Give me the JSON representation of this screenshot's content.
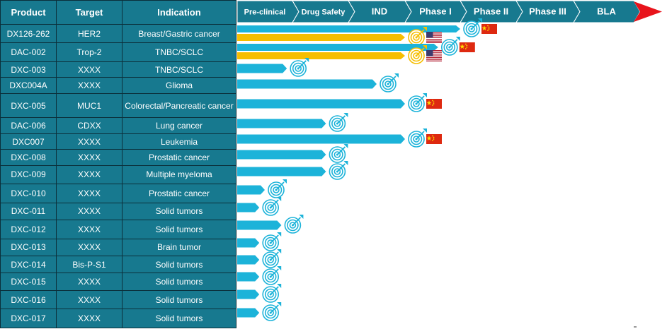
{
  "table": {
    "headers": [
      "Product",
      "Target",
      "Indication"
    ],
    "rows": [
      [
        "DX126-262",
        "HER2",
        "Breast/Gastric cancer"
      ],
      [
        "DAC-002",
        "Trop-2",
        "TNBC/SCLC"
      ],
      [
        "DXC-003",
        "XXXX",
        "TNBC/SCLC"
      ],
      [
        "DXC004A",
        "XXXX",
        "Glioma"
      ],
      [
        "DXC-005",
        "MUC1",
        "Colorectal/Pancreatic cancer"
      ],
      [
        "DAC-006",
        "CDXX",
        "Lung cancer"
      ],
      [
        "DXC007",
        "XXXX",
        "Leukemia"
      ],
      [
        "DXC-008",
        "XXXX",
        "Prostatic cancer"
      ],
      [
        "DXC-009",
        "XXXX",
        "Multiple myeloma"
      ],
      [
        "DXC-010",
        "XXXX",
        "Prostatic cancer"
      ],
      [
        "DXC-011",
        "XXXX",
        "Solid tumors"
      ],
      [
        "DXC-012",
        "XXXX",
        "Solid tumors"
      ],
      [
        "DXC-013",
        "XXXX",
        "Brain tumor"
      ],
      [
        "DXC-014",
        "Bis-P-S1",
        "Solid tumors"
      ],
      [
        "DXC-015",
        "XXXX",
        "Solid tumors"
      ],
      [
        "DXC-016",
        "XXXX",
        "Solid tumors"
      ],
      [
        "DXC-017",
        "XXXX",
        "Solid tumors"
      ]
    ]
  },
  "stages": [
    "Pre-clinical",
    "Drug Safety",
    "IND",
    "Phase I",
    "Phase II",
    "Phase III",
    "BLA"
  ],
  "colors": {
    "table_bg": "#17798f",
    "table_border": "#0b2f3a",
    "stage_bg": "#17798f",
    "end_arrow": "#e8141c",
    "china_progress": "#1cb3d9",
    "us_progress": "#f6be00"
  },
  "programs": [
    {
      "row": 0,
      "bars": [
        {
          "track": "china",
          "stage_index": 4.0,
          "flag": "china-flag"
        },
        {
          "track": "us",
          "stage_index": 3.0,
          "flag": "us-flag"
        }
      ]
    },
    {
      "row": 1,
      "bars": [
        {
          "track": "china",
          "stage_index": 3.6,
          "flag": "china-flag"
        },
        {
          "track": "us",
          "stage_index": 3.0,
          "flag": "us-flag"
        }
      ]
    },
    {
      "row": 2,
      "bars": [
        {
          "track": "china",
          "stage_index": 0.9
        }
      ]
    },
    {
      "row": 3,
      "bars": [
        {
          "track": "china",
          "stage_index": 2.5
        }
      ]
    },
    {
      "row": 4,
      "bars": [
        {
          "track": "china",
          "stage_index": 3.0,
          "flag": "china-flag"
        }
      ]
    },
    {
      "row": 5,
      "bars": [
        {
          "track": "china",
          "stage_index": 1.6
        }
      ]
    },
    {
      "row": 6,
      "bars": [
        {
          "track": "china",
          "stage_index": 3.0,
          "flag": "china-flag"
        }
      ]
    },
    {
      "row": 7,
      "bars": [
        {
          "track": "china",
          "stage_index": 1.6
        }
      ]
    },
    {
      "row": 8,
      "bars": [
        {
          "track": "china",
          "stage_index": 1.6
        }
      ]
    },
    {
      "row": 9,
      "bars": [
        {
          "track": "china",
          "stage_index": 0.5
        }
      ]
    },
    {
      "row": 10,
      "bars": [
        {
          "track": "china",
          "stage_index": 0.4
        }
      ]
    },
    {
      "row": 11,
      "bars": [
        {
          "track": "china",
          "stage_index": 0.8
        }
      ]
    },
    {
      "row": 12,
      "bars": [
        {
          "track": "china",
          "stage_index": 0.4
        }
      ]
    },
    {
      "row": 13,
      "bars": [
        {
          "track": "china",
          "stage_index": 0.4
        }
      ]
    },
    {
      "row": 14,
      "bars": [
        {
          "track": "china",
          "stage_index": 0.4
        }
      ]
    },
    {
      "row": 15,
      "bars": [
        {
          "track": "china",
          "stage_index": 0.4
        }
      ]
    },
    {
      "row": 16,
      "bars": [
        {
          "track": "china",
          "stage_index": 0.4
        }
      ]
    }
  ]
}
